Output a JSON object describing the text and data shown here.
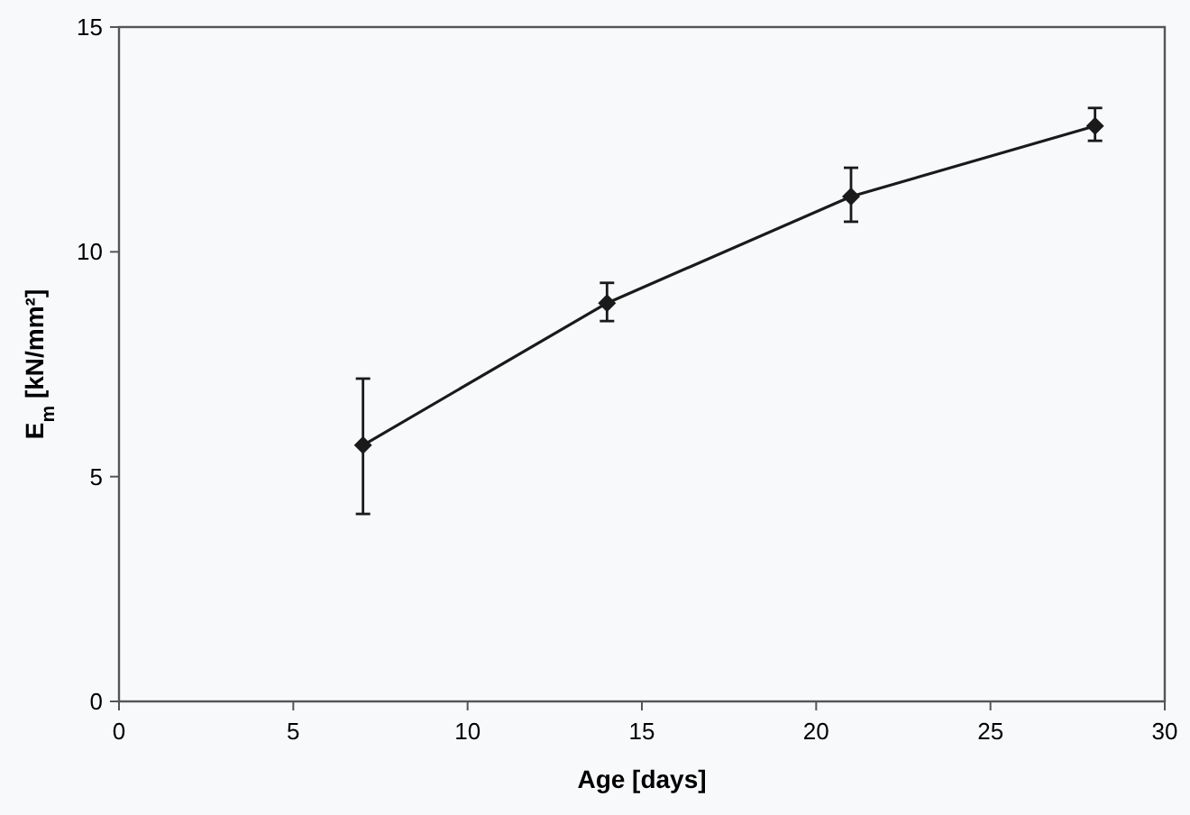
{
  "chart_data": {
    "type": "line",
    "xlabel": "Age [days]",
    "ylabel": "E$_{m}$ [kN/mm²]",
    "x": [
      7,
      14,
      21,
      28
    ],
    "series": [
      {
        "color": "#1a1a1a",
        "values": [
          5.7,
          8.86,
          11.23,
          12.8
        ],
        "errors": [
          [
            4.17,
            7.18
          ],
          [
            8.46,
            9.31
          ],
          [
            10.67,
            11.87
          ],
          [
            12.47,
            13.2
          ]
        ]
      }
    ],
    "xlim": [
      0,
      30
    ],
    "xticks": [
      0,
      5,
      10,
      15,
      20,
      25,
      30
    ],
    "ylim": [
      0,
      15
    ],
    "yticks": [
      0,
      5,
      10,
      15
    ],
    "marker": "diamond",
    "line_style": "solid"
  }
}
